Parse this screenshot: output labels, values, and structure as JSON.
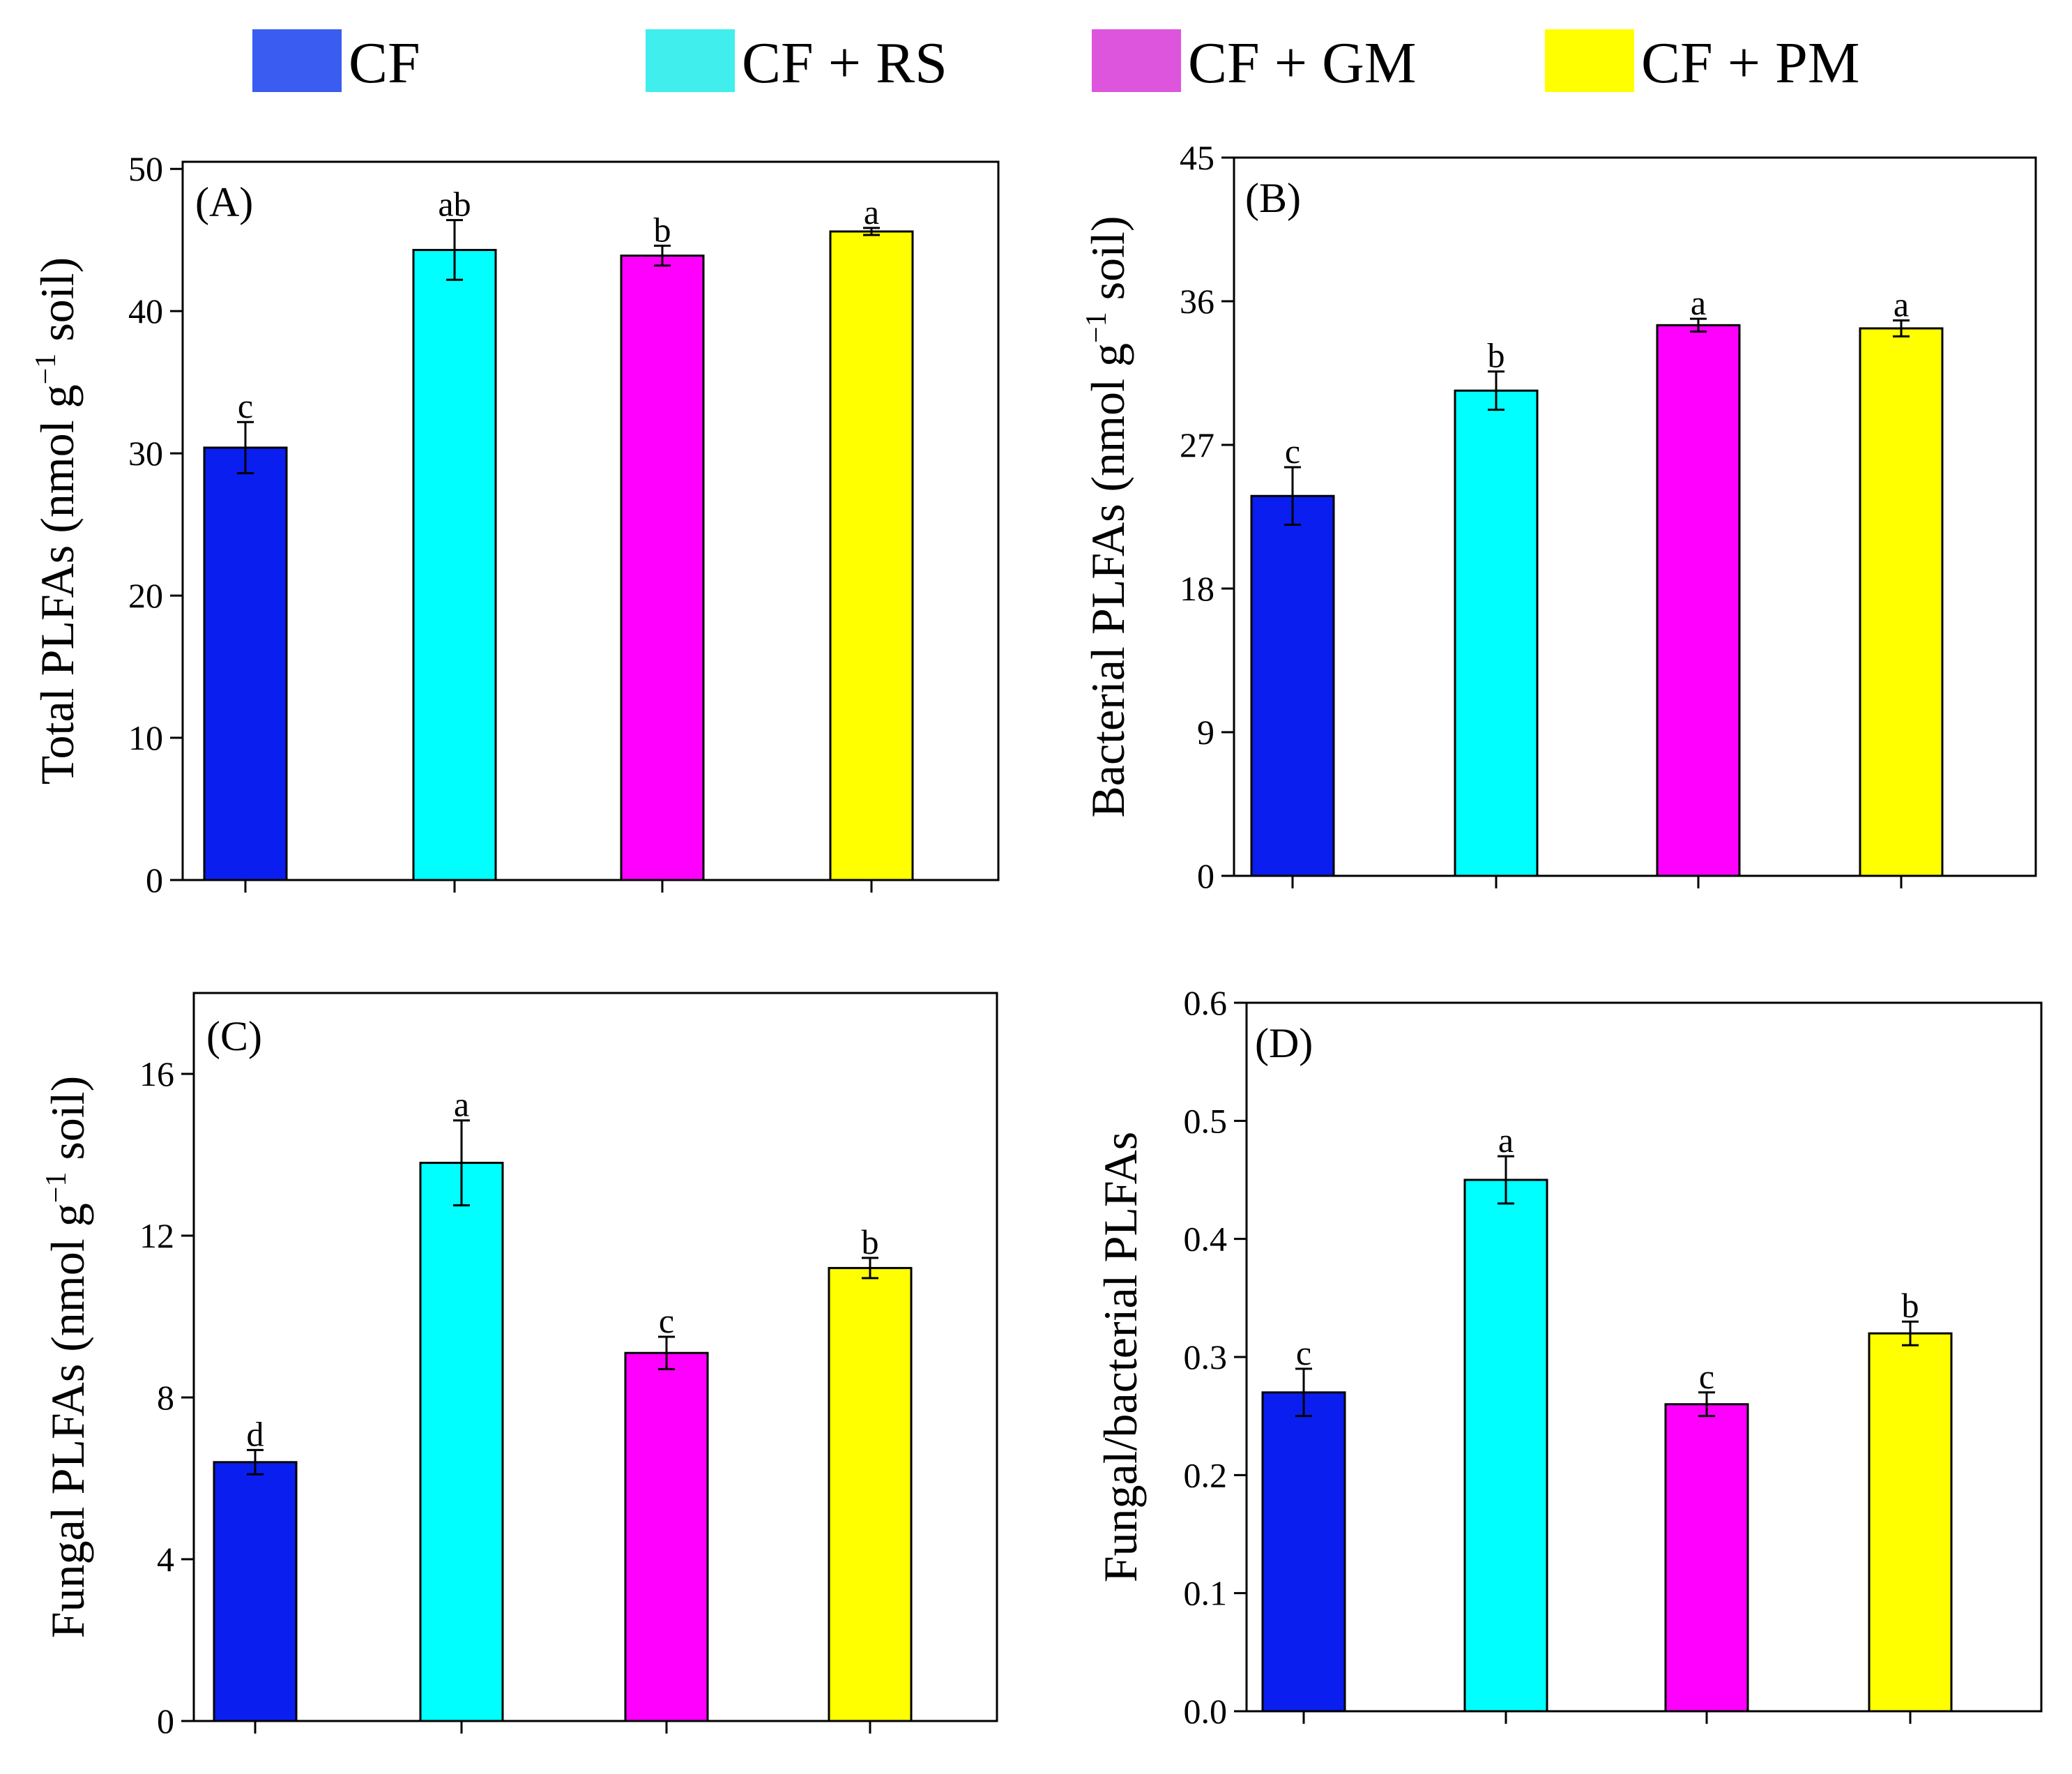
{
  "legend": [
    {
      "label": "CF",
      "color": "#3a5cf0"
    },
    {
      "label": "CF + RS",
      "color": "#40eeee"
    },
    {
      "label": "CF + GM",
      "color": "#dd55dd"
    },
    {
      "label": "CF + PM",
      "color": "#ffff00"
    }
  ],
  "colors": [
    "#0a1ef0",
    "#00ffff",
    "#ff00ff",
    "#ffff00"
  ],
  "chart_data": [
    {
      "panel": "(A)",
      "type": "bar",
      "categories": [
        "CF",
        "CF + RS",
        "CF + GM",
        "CF + PM"
      ],
      "values": [
        30.4,
        44.3,
        43.9,
        45.6
      ],
      "errors": [
        1.8,
        2.1,
        0.7,
        0.25
      ],
      "sig": [
        "c",
        "ab",
        "b",
        "a"
      ],
      "ylabel": "Total PLFAs (nmol g",
      "ylabel_sup": "−1",
      "ylabel_tail": " soil)",
      "ylim": [
        0,
        50.5
      ],
      "yticks": [
        "0",
        "10",
        "20",
        "30",
        "40",
        "50"
      ],
      "ytick_values": [
        0,
        10,
        20,
        30,
        40,
        50
      ]
    },
    {
      "panel": "(B)",
      "type": "bar",
      "categories": [
        "CF",
        "CF + RS",
        "CF + GM",
        "CF + PM"
      ],
      "values": [
        23.8,
        30.4,
        34.5,
        34.3
      ],
      "errors": [
        1.8,
        1.2,
        0.4,
        0.5
      ],
      "sig": [
        "c",
        "b",
        "a",
        "a"
      ],
      "ylabel": "Bacterial PLFAs (nmol g",
      "ylabel_sup": "−1",
      "ylabel_tail": " soil)",
      "ylim": [
        0,
        45
      ],
      "yticks": [
        "0",
        "9",
        "18",
        "27",
        "36",
        "45"
      ],
      "ytick_values": [
        0,
        9,
        18,
        27,
        36,
        45
      ]
    },
    {
      "panel": "(C)",
      "type": "bar",
      "categories": [
        "CF",
        "CF + RS",
        "CF + GM",
        "CF + PM"
      ],
      "values": [
        6.4,
        13.8,
        9.1,
        11.2
      ],
      "errors": [
        0.3,
        1.05,
        0.4,
        0.25
      ],
      "sig": [
        "d",
        "a",
        "c",
        "b"
      ],
      "ylabel": "Fungal PLFAs (nmol g",
      "ylabel_sup": "−1",
      "ylabel_tail": " soil)",
      "ylim": [
        0,
        18
      ],
      "yticks": [
        "0",
        "4",
        "8",
        "12",
        "16"
      ],
      "ytick_values": [
        0,
        4,
        8,
        12,
        16
      ]
    },
    {
      "panel": "(D)",
      "type": "bar",
      "categories": [
        "CF",
        "CF + RS",
        "CF + GM",
        "CF + PM"
      ],
      "values": [
        0.27,
        0.45,
        0.26,
        0.32
      ],
      "errors": [
        0.02,
        0.02,
        0.01,
        0.01
      ],
      "sig": [
        "c",
        "a",
        "c",
        "b"
      ],
      "ylabel": "Fungal/bacterial PLFAs",
      "ylabel_sup": "",
      "ylabel_tail": "",
      "ylim": [
        0,
        0.6
      ],
      "yticks": [
        "0.0",
        "0.1",
        "0.2",
        "0.3",
        "0.4",
        "0.5",
        "0.6"
      ],
      "ytick_values": [
        0,
        0.1,
        0.2,
        0.3,
        0.4,
        0.5,
        0.6
      ]
    }
  ]
}
